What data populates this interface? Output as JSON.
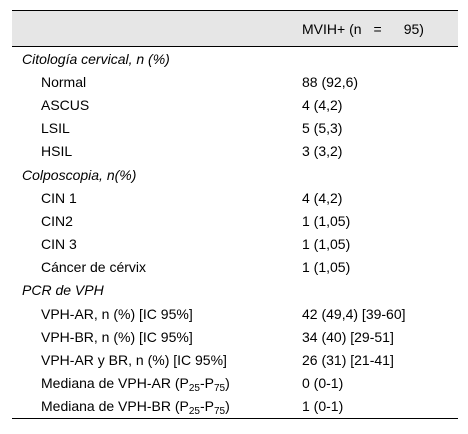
{
  "header": {
    "label": "MVIH+ (n",
    "eq": "=",
    "num": "95)"
  },
  "sections": [
    {
      "title": "Citología cervical, n (%)",
      "rows": [
        {
          "label": "Normal",
          "value": "88 (92,6)"
        },
        {
          "label": "ASCUS",
          "value": "4 (4,2)"
        },
        {
          "label": "LSIL",
          "value": "5 (5,3)"
        },
        {
          "label": "HSIL",
          "value": "3 (3,2)"
        }
      ]
    },
    {
      "title": "Colposcopia, n(%)",
      "rows": [
        {
          "label": "CIN 1",
          "value": "4 (4,2)"
        },
        {
          "label": "CIN2",
          "value": "1 (1,05)"
        },
        {
          "label": "CIN 3",
          "value": "1 (1,05)"
        },
        {
          "label": "Cáncer de cérvix",
          "value": "1 (1,05)"
        }
      ]
    },
    {
      "title": "PCR de VPH",
      "rows": [
        {
          "label": "VPH-AR, n (%) [IC 95%]",
          "value": "42 (49,4) [39-60]"
        },
        {
          "label": "VPH-BR, n (%) [IC 95%]",
          "value": "34 (40) [29-51]"
        },
        {
          "label": "VPH-AR y BR, n (%) [IC 95%]",
          "value": "26 (31) [21-41]"
        },
        {
          "label_prefix": "Mediana de VPH-AR (P",
          "sub1": "25",
          "label_mid": "-P",
          "sub2": "75",
          "label_suffix": ")",
          "value": "0 (0-1)"
        },
        {
          "label_prefix": "Mediana de VPH-BR (P",
          "sub1": "25",
          "label_mid": "-P",
          "sub2": "75",
          "label_suffix": ")",
          "value": "1 (0-1)"
        }
      ]
    }
  ]
}
